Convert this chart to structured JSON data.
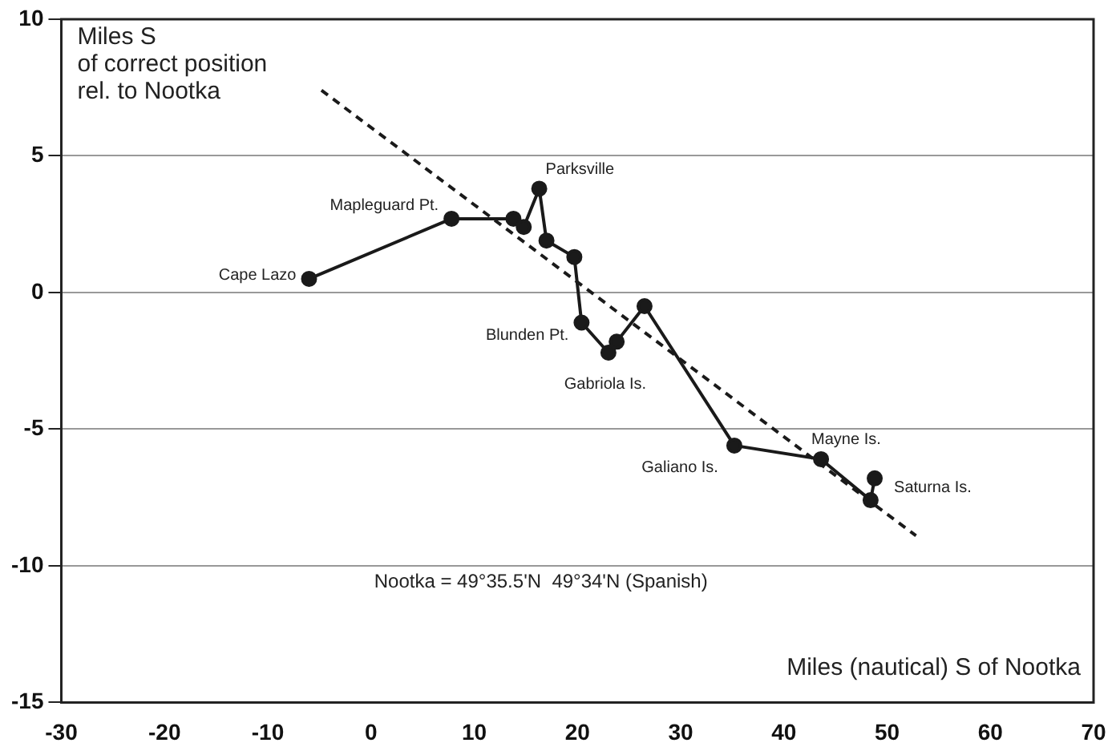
{
  "chart_data": {
    "type": "line",
    "xlabel": "Miles (nautical) S of Nootka",
    "ylabel": "Miles S\nof correct position\nrel. to Nootka",
    "x": [
      -6.0,
      7.8,
      13.8,
      14.8,
      16.3,
      17.0,
      19.7,
      20.4,
      23.0,
      23.8,
      26.5,
      35.2,
      43.6,
      48.4,
      48.8
    ],
    "series": [
      {
        "color": "#1a1a1a",
        "marker": "circle",
        "line_style": "solid",
        "values": [
          0.5,
          2.7,
          2.7,
          2.4,
          3.8,
          1.9,
          1.3,
          -1.1,
          -2.2,
          -1.8,
          -0.5,
          -5.6,
          -6.1,
          -7.6,
          -6.8
        ]
      },
      {
        "color": "#1a1a1a",
        "marker": "none",
        "line_style": "dashed",
        "x": [
          -4.8,
          52.8
        ],
        "values": [
          7.4,
          -8.9
        ]
      }
    ],
    "xlim": [
      -30,
      70
    ],
    "xticks": [
      -30,
      -20,
      -10,
      0,
      10,
      20,
      30,
      40,
      50,
      60,
      70
    ],
    "ylim": [
      -15,
      10
    ],
    "yticks": [
      -15,
      -10,
      -5,
      0,
      5,
      10
    ],
    "grid": "y",
    "legend": false,
    "annotations": [
      {
        "text": "Cape Lazo",
        "x": -6.0,
        "y": 0.5
      },
      {
        "text": "Mapleguard Pt.",
        "x": 7.8,
        "y": 2.7
      },
      {
        "text": "Parksville",
        "x": 16.3,
        "y": 3.8
      },
      {
        "text": "Blunden Pt.",
        "x": 20.4,
        "y": -1.1
      },
      {
        "text": "Gabriola Is.",
        "x": 23.0,
        "y": -2.2
      },
      {
        "text": "Galiano Is.",
        "x": 35.2,
        "y": -5.6
      },
      {
        "text": "Mayne Is.",
        "x": 43.6,
        "y": -6.1
      },
      {
        "text": "Saturna Is.",
        "x": 48.8,
        "y": -6.8
      },
      "Nootka = 49°35.5'N  49°34'N (Spanish)"
    ]
  }
}
